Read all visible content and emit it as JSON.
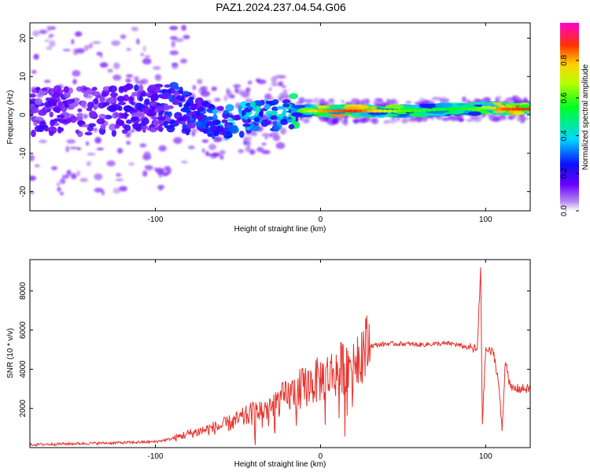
{
  "title": "PAZ1.2024.237.04.54.G06",
  "chart_data": [
    {
      "type": "heatmap",
      "xlabel": "Height of straight line (km)",
      "ylabel": "Frequency (Hz)",
      "xlim": [
        -176,
        127
      ],
      "ylim": [
        -25,
        24
      ],
      "xticks": [
        -100,
        0,
        100
      ],
      "yticks": [
        -20,
        -10,
        0,
        10,
        20
      ],
      "colorbar": {
        "label": "Normalized spectral amplitude",
        "range": [
          0.0,
          1.0
        ],
        "ticks": [
          0.0,
          0.2,
          0.4,
          0.6,
          0.8
        ]
      },
      "ridge": {
        "x": [
          -176,
          -130,
          -100,
          -85,
          -70,
          -60,
          -45,
          -30,
          -15,
          0,
          20,
          50,
          80,
          95,
          100,
          110,
          127
        ],
        "freq": [
          1,
          1,
          2,
          2,
          -1,
          -2,
          -1,
          0,
          1,
          1,
          1,
          1,
          1.5,
          1.5,
          2,
          1.5,
          1.5
        ],
        "amplitude": [
          0.2,
          0.2,
          0.25,
          0.3,
          0.35,
          0.4,
          0.45,
          0.45,
          0.55,
          0.8,
          0.9,
          0.6,
          0.55,
          0.6,
          0.7,
          0.85,
          0.9
        ]
      }
    },
    {
      "type": "line",
      "xlabel": "Height of straight line (km)",
      "ylabel": "SNR (10 * v/v)",
      "xlim": [
        -176,
        127
      ],
      "ylim": [
        0,
        9600
      ],
      "xticks": [
        -100,
        0,
        100
      ],
      "yticks": [
        2000,
        4000,
        6000,
        8000
      ],
      "color": "#e8302a",
      "series": [
        {
          "x": [
            -176,
            -150,
            -120,
            -100,
            -90,
            -80,
            -70,
            -60,
            -50,
            -40,
            -30,
            -25,
            -20,
            -15,
            -10,
            -5,
            0,
            5,
            10,
            15,
            20,
            25,
            30,
            40,
            50,
            60,
            70,
            80,
            90,
            95,
            97,
            98,
            100,
            103,
            105,
            108,
            110,
            112,
            115,
            120,
            127
          ],
          "values": [
            150,
            200,
            250,
            300,
            450,
            700,
            900,
            1100,
            1400,
            1800,
            2100,
            2400,
            2600,
            2900,
            3100,
            3300,
            3500,
            3700,
            3900,
            4200,
            4600,
            5000,
            5200,
            5300,
            5300,
            5250,
            5300,
            5300,
            5100,
            5000,
            9200,
            1200,
            5000,
            4900,
            4800,
            3200,
            800,
            4600,
            3000,
            3000,
            3000
          ]
        }
      ]
    }
  ]
}
